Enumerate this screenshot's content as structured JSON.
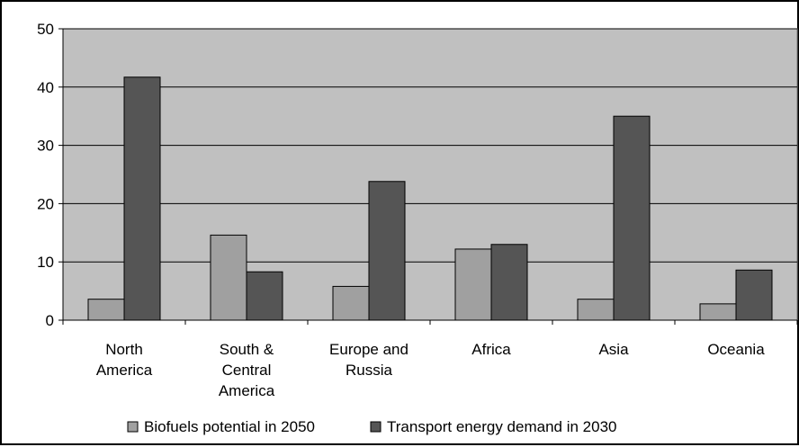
{
  "chart_data": {
    "type": "bar",
    "title": "",
    "xlabel": "",
    "ylabel": "",
    "ylim": [
      0,
      50
    ],
    "yticks": [
      0,
      10,
      20,
      30,
      40,
      50
    ],
    "grid": "horizontal",
    "legend_position": "bottom",
    "plot_background": "#c0c0c0",
    "categories": [
      [
        "North",
        "America"
      ],
      [
        "South &",
        "Central",
        "America"
      ],
      [
        "Europe and",
        "Russia"
      ],
      [
        "Africa"
      ],
      [
        "Asia"
      ],
      [
        "Oceania"
      ]
    ],
    "series": [
      {
        "name": "Biofuels potential in 2050",
        "color": "#a0a0a0",
        "values": [
          3.6,
          14.6,
          5.8,
          12.2,
          3.6,
          2.8
        ]
      },
      {
        "name": "Transport energy demand in 2030",
        "color": "#555555",
        "values": [
          41.7,
          8.3,
          23.8,
          13.0,
          35.0,
          8.6
        ]
      }
    ]
  }
}
